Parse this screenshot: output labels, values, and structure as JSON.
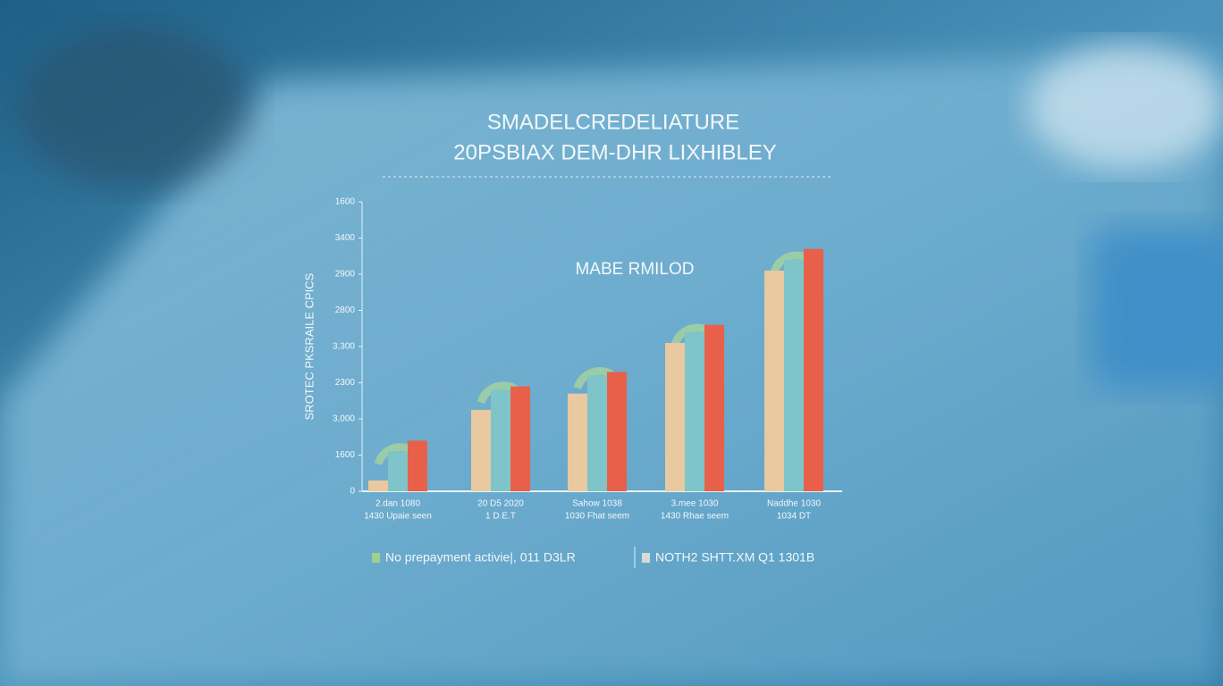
{
  "chart_data": {
    "type": "bar",
    "title": "SMADELCREDELIATURE",
    "subtitle": "20PSBIAX DEM-DHR LIXHIBLEY",
    "y_label": "SROTEC PKSRAILE CPICS",
    "annotation": "MABE RMILOD",
    "categories": [
      "2.dan 1080",
      "20 D5 2020",
      "Sahow 1038",
      "3.mee 1030",
      "Naddhe 1030"
    ],
    "category_sublabels": [
      "1430 Upaie seen",
      "1 D.E.T",
      "1030 Fhat seem",
      "1430 Rhae seem",
      "1034 DT"
    ],
    "series": [
      {
        "color": "#e8c9a0",
        "values": [
          0.3,
          2.25,
          2.7,
          4.1,
          6.1
        ]
      },
      {
        "name": "No prepayment activie|, 011 D3LR",
        "color": "#7fc4c8",
        "values": [
          1.1,
          2.8,
          3.2,
          4.4,
          6.4
        ]
      },
      {
        "name": "NOTH2 SHTT.XM Q1 1301B",
        "color": "#e8604a",
        "values": [
          1.4,
          2.9,
          3.3,
          4.6,
          6.7
        ]
      }
    ],
    "legend_colors": [
      "#9fd08f",
      "#d9d9d9"
    ],
    "ylim": [
      0,
      8
    ],
    "yticks": [
      {
        "value": 0,
        "label": "0"
      },
      {
        "value": 1,
        "label": "1600"
      },
      {
        "value": 2,
        "label": "3,000"
      },
      {
        "value": 3,
        "label": "2300"
      },
      {
        "value": 4,
        "label": "3,300"
      },
      {
        "value": 5,
        "label": "2800"
      },
      {
        "value": 6,
        "label": "2900"
      },
      {
        "value": 7,
        "label": "3400"
      },
      {
        "value": 8,
        "label": "1600"
      }
    ],
    "grid": false
  }
}
